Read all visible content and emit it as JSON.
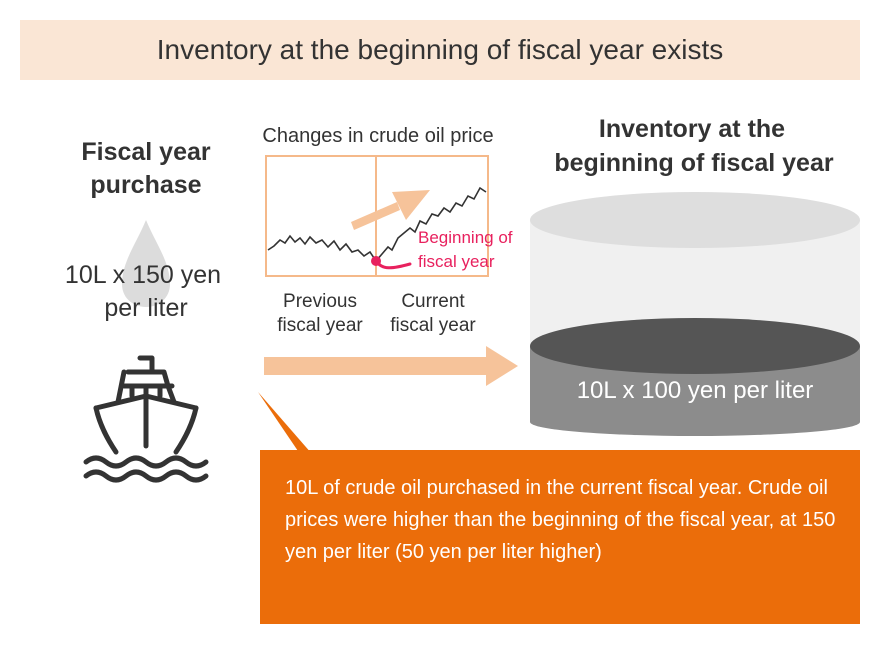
{
  "header": {
    "title": "Inventory at the beginning of fiscal year exists"
  },
  "left": {
    "heading_line1": "Fiscal year",
    "heading_line2": "purchase",
    "price_line1": "10L x 150 yen",
    "price_line2": "per liter"
  },
  "chart": {
    "title": "Changes in crude oil price",
    "marker_label_line1": "Beginning of",
    "marker_label_line2": "fiscal year",
    "period1_line1": "Previous",
    "period1_line2": "fiscal year",
    "period2_line1": "Current",
    "period2_line2": "fiscal year"
  },
  "inventory": {
    "heading_line1": "Inventory at the",
    "heading_line2": "beginning of fiscal year",
    "tank_label": "10L x 100 yen per liter"
  },
  "callout": {
    "text": "10L of crude oil purchased in the current fiscal year. Crude oil prices were higher than the beginning of the fiscal year, at 150 yen per liter (50 yen per liter higher)"
  },
  "icons": [
    "oil-drop-icon",
    "ship-icon",
    "arrow-right-icon",
    "trend-up-arrow-icon",
    "oil-tank-icon"
  ],
  "colors": {
    "banner_bg": "#fae6d5",
    "callout_bg": "#eb6d0a",
    "arrow": "#f6c39a",
    "marker": "#e8215e",
    "tank_top": "#d9d9d9",
    "tank_oil": "#8c8c8c"
  }
}
